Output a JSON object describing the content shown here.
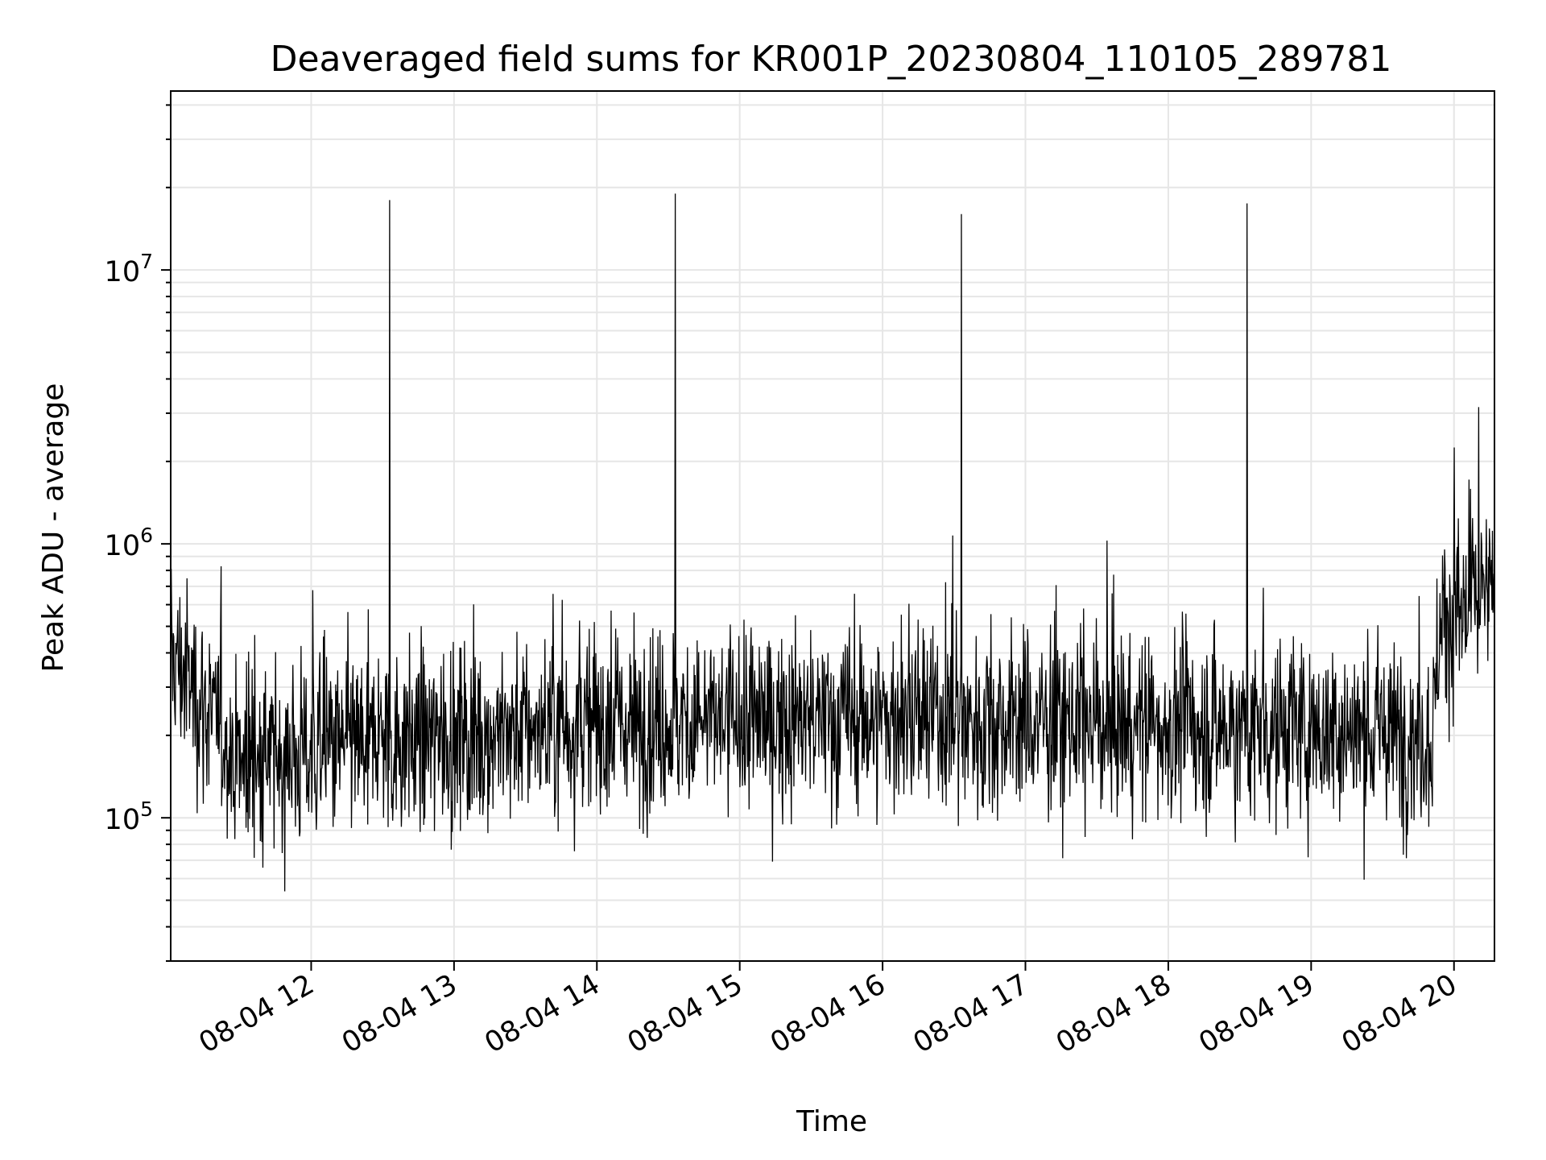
{
  "chart_data": {
    "type": "line",
    "title": "Deaveraged field sums for KR001P_20230804_110105_289781",
    "xlabel": "Time",
    "ylabel": "Peak ADU - average",
    "x_start": "2023-08-04 11:01",
    "x_end": "2023-08-04 20:17",
    "xlim": [
      "2023-08-04 11:01",
      "2023-08-04 20:17"
    ],
    "x_ticks": [
      "08-04 12",
      "08-04 13",
      "08-04 14",
      "08-04 15",
      "08-04 16",
      "08-04 17",
      "08-04 18",
      "08-04 19",
      "08-04 20"
    ],
    "y_scale": "log",
    "ylim": [
      30000,
      45000000
    ],
    "y_ticks": [
      {
        "base": "10",
        "exp": "5"
      },
      {
        "base": "10",
        "exp": "6"
      },
      {
        "base": "10",
        "exp": "7"
      }
    ],
    "grid": true,
    "line_color": "#000000",
    "grid_color": "#e6e6e6",
    "baseline": [
      {
        "time": "2023-08-04 11:01",
        "value": 400000
      },
      {
        "time": "2023-08-04 11:30",
        "value": 160000
      },
      {
        "time": "2023-08-04 12:30",
        "value": 190000
      },
      {
        "time": "2023-08-04 14:00",
        "value": 220000
      },
      {
        "time": "2023-08-04 16:00",
        "value": 230000
      },
      {
        "time": "2023-08-04 17:30",
        "value": 220000
      },
      {
        "time": "2023-08-04 19:00",
        "value": 210000
      },
      {
        "time": "2023-08-04 19:51",
        "value": 200000
      },
      {
        "time": "2023-08-04 19:54",
        "value": 520000
      },
      {
        "time": "2023-08-04 20:17",
        "value": 650000
      }
    ],
    "spikes": [
      {
        "time": "2023-08-04 12:33",
        "value": 18000000
      },
      {
        "time": "2023-08-04 14:33",
        "value": 19000000
      },
      {
        "time": "2023-08-04 16:33",
        "value": 16000000
      },
      {
        "time": "2023-08-04 18:33",
        "value": 17500000
      }
    ]
  }
}
